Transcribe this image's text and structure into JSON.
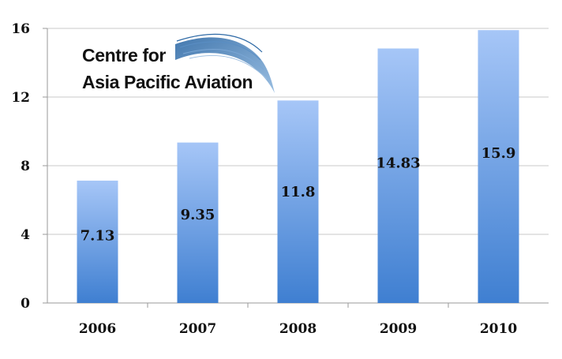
{
  "logo": {
    "line1": "Centre for",
    "line2": "Asia Pacific Aviation",
    "swoosh_color": "#3d78b5"
  },
  "chart_data": {
    "type": "bar",
    "categories": [
      "2006",
      "2007",
      "2008",
      "2009",
      "2010"
    ],
    "values": [
      7.13,
      9.35,
      11.8,
      14.83,
      15.9
    ],
    "data_labels": [
      "7.13",
      "9.35",
      "11.8",
      "14.83",
      "15.9"
    ],
    "title": "",
    "xlabel": "",
    "ylabel": "",
    "ylim": [
      0,
      16
    ],
    "yticks": [
      0,
      4,
      8,
      12,
      16
    ],
    "grid": true,
    "bar_color_top": "#a6c6f7",
    "bar_color_bottom": "#3f7fd1",
    "grid_color": "#c8c8c8"
  }
}
